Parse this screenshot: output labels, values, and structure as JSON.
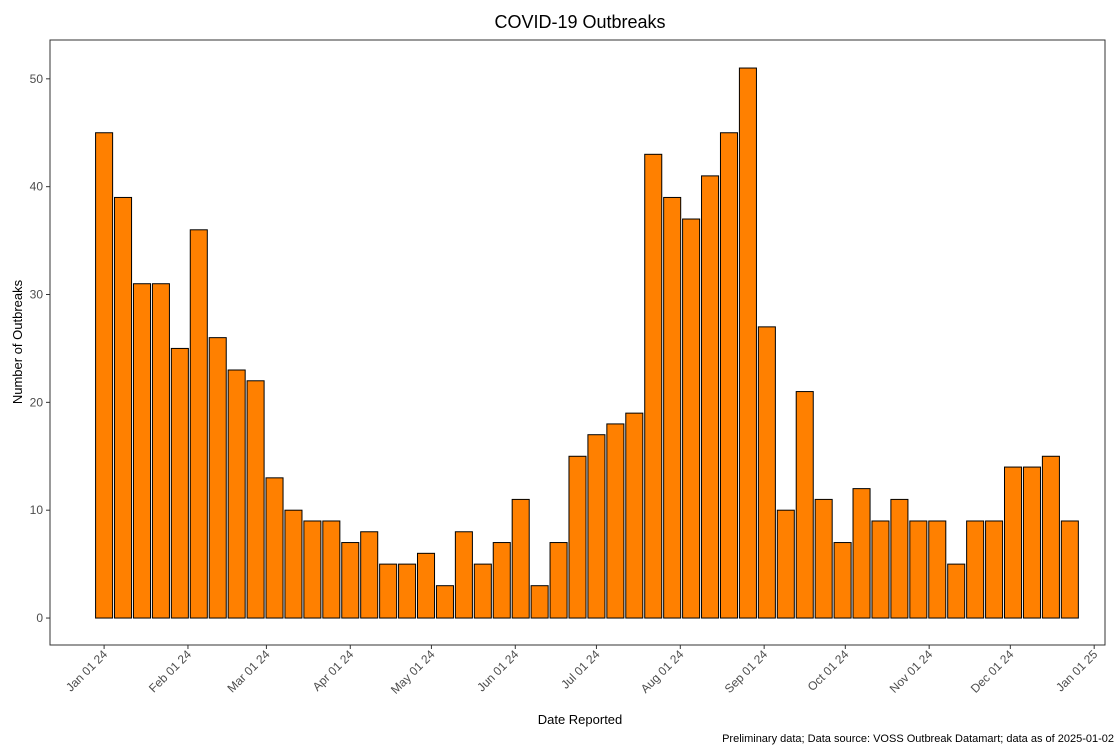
{
  "chart_data": {
    "type": "bar",
    "title": "COVID-19 Outbreaks",
    "x_label": "Date Reported",
    "y_label": "Number of Outbreaks",
    "caption": "Preliminary data; Data source: VOSS Outbreak Datamart; data as of 2025-01-02",
    "x": [
      "2024-01-01",
      "2024-01-08",
      "2024-01-15",
      "2024-01-22",
      "2024-01-29",
      "2024-02-05",
      "2024-02-12",
      "2024-02-19",
      "2024-02-26",
      "2024-03-04",
      "2024-03-11",
      "2024-03-18",
      "2024-03-25",
      "2024-04-01",
      "2024-04-08",
      "2024-04-15",
      "2024-04-22",
      "2024-04-29",
      "2024-05-06",
      "2024-05-13",
      "2024-05-20",
      "2024-05-27",
      "2024-06-03",
      "2024-06-10",
      "2024-06-17",
      "2024-06-24",
      "2024-07-01",
      "2024-07-08",
      "2024-07-15",
      "2024-07-22",
      "2024-07-29",
      "2024-08-05",
      "2024-08-12",
      "2024-08-19",
      "2024-08-26",
      "2024-09-02",
      "2024-09-09",
      "2024-09-16",
      "2024-09-23",
      "2024-09-30",
      "2024-10-07",
      "2024-10-14",
      "2024-10-21",
      "2024-10-28",
      "2024-11-04",
      "2024-11-11",
      "2024-11-18",
      "2024-11-25",
      "2024-12-02",
      "2024-12-09",
      "2024-12-16",
      "2024-12-23"
    ],
    "values": [
      45,
      39,
      31,
      31,
      25,
      36,
      26,
      23,
      22,
      13,
      10,
      9,
      9,
      7,
      8,
      5,
      5,
      6,
      3,
      8,
      5,
      7,
      11,
      3,
      7,
      15,
      17,
      18,
      19,
      43,
      39,
      37,
      41,
      45,
      51,
      27,
      10,
      21,
      11,
      7,
      12,
      9,
      11,
      9,
      9,
      5,
      9,
      9,
      14,
      14,
      15,
      9
    ],
    "color": "#ff8000",
    "edge_color": "#000000",
    "xlim": [
      "2023-12-12",
      "2025-01-05"
    ],
    "xticks": [
      {
        "value": "2024-01-01",
        "label": "Jan 01 24"
      },
      {
        "value": "2024-02-01",
        "label": "Feb 01 24"
      },
      {
        "value": "2024-03-01",
        "label": "Mar 01 24"
      },
      {
        "value": "2024-04-01",
        "label": "Apr 01 24"
      },
      {
        "value": "2024-05-01",
        "label": "May 01 24"
      },
      {
        "value": "2024-06-01",
        "label": "Jun 01 24"
      },
      {
        "value": "2024-07-01",
        "label": "Jul 01 24"
      },
      {
        "value": "2024-08-01",
        "label": "Aug 01 24"
      },
      {
        "value": "2024-09-01",
        "label": "Sep 01 24"
      },
      {
        "value": "2024-10-01",
        "label": "Oct 01 24"
      },
      {
        "value": "2024-11-01",
        "label": "Nov 01 24"
      },
      {
        "value": "2024-12-01",
        "label": "Dec 01 24"
      },
      {
        "value": "2025-01-01",
        "label": "Jan 01 25"
      }
    ],
    "ylim": [
      -2.5,
      53.6
    ],
    "yticks": [
      0,
      10,
      20,
      30,
      40,
      50
    ],
    "grid": false
  }
}
